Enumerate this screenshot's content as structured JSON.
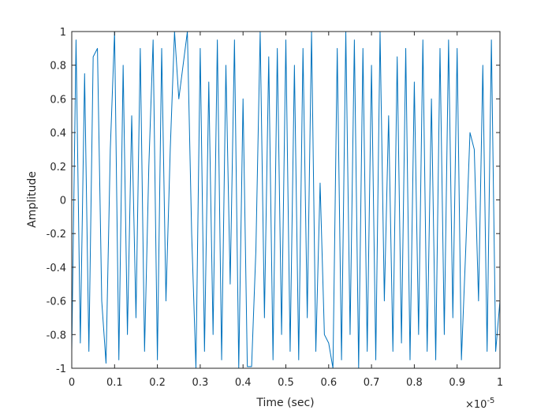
{
  "chart_data": {
    "type": "line",
    "xlabel": "Time (sec)",
    "ylabel": "Amplitude",
    "x_multiplier": {
      "base": "×10",
      "exponent": "-5"
    },
    "x": [
      0,
      0.01,
      0.02,
      0.03,
      0.04,
      0.05,
      0.06,
      0.07,
      0.08,
      0.09,
      0.1,
      0.11,
      0.12,
      0.13,
      0.14,
      0.15,
      0.16,
      0.17,
      0.18,
      0.19,
      0.2,
      0.21,
      0.22,
      0.23,
      0.24,
      0.25,
      0.26,
      0.27,
      0.28,
      0.29,
      0.3,
      0.31,
      0.32,
      0.33,
      0.34,
      0.35,
      0.36,
      0.37,
      0.38,
      0.39,
      0.4,
      0.41,
      0.42,
      0.43,
      0.44,
      0.45,
      0.46,
      0.47,
      0.48,
      0.49,
      0.5,
      0.51,
      0.52,
      0.53,
      0.54,
      0.55,
      0.56,
      0.57,
      0.58,
      0.59,
      0.6,
      0.61,
      0.62,
      0.63,
      0.64,
      0.65,
      0.66,
      0.67,
      0.68,
      0.69,
      0.7,
      0.71,
      0.72,
      0.73,
      0.74,
      0.75,
      0.76,
      0.77,
      0.78,
      0.79,
      0.8,
      0.81,
      0.82,
      0.83,
      0.84,
      0.85,
      0.86,
      0.87,
      0.88,
      0.89,
      0.9,
      0.91,
      0.92,
      0.93,
      0.94,
      0.95,
      0.96,
      0.97,
      0.98,
      0.99,
      1
    ],
    "series": [
      {
        "color": "#0072bd",
        "values": [
          -0.9,
          0.95,
          -0.85,
          0.75,
          -0.9,
          0.85,
          0.9,
          -0.6,
          -0.97,
          0.3,
          1,
          -0.95,
          0.8,
          -0.8,
          0.5,
          -0.7,
          0.9,
          -0.9,
          0.2,
          0.95,
          -0.95,
          0.9,
          -0.6,
          0.3,
          1,
          0.6,
          0.8,
          1,
          -0.2,
          -1,
          0.9,
          -0.9,
          0.7,
          -0.8,
          0.95,
          -0.95,
          0.8,
          -0.5,
          0.95,
          -1,
          0.6,
          -0.99,
          -0.99,
          -0.3,
          1,
          -0.7,
          0.85,
          -0.95,
          0.9,
          -0.8,
          0.95,
          -0.9,
          0.8,
          -0.95,
          0.9,
          -0.7,
          1,
          -0.9,
          0.1,
          -0.8,
          -0.85,
          -1,
          0.9,
          -0.95,
          1,
          -0.8,
          0.95,
          -1,
          0.9,
          -0.9,
          0.8,
          -0.95,
          1,
          -0.6,
          0.5,
          -0.9,
          0.85,
          -0.85,
          0.9,
          -0.95,
          0.7,
          -0.8,
          0.95,
          -0.9,
          0.6,
          -0.95,
          0.9,
          -0.8,
          0.95,
          -0.7,
          0.9,
          -0.95,
          -0.3,
          0.4,
          0.3,
          -0.6,
          0.8,
          -0.9,
          0.95,
          -0.9,
          -0.6
        ]
      }
    ],
    "xlim": [
      0,
      1
    ],
    "xticks": [
      0,
      0.1,
      0.2,
      0.3,
      0.4,
      0.5,
      0.6,
      0.7,
      0.8,
      0.9,
      1
    ],
    "ylim": [
      -1,
      1
    ],
    "yticks": [
      -1,
      -0.8,
      -0.6,
      -0.4,
      -0.2,
      0,
      0.2,
      0.4,
      0.6,
      0.8,
      1
    ],
    "grid": false
  }
}
